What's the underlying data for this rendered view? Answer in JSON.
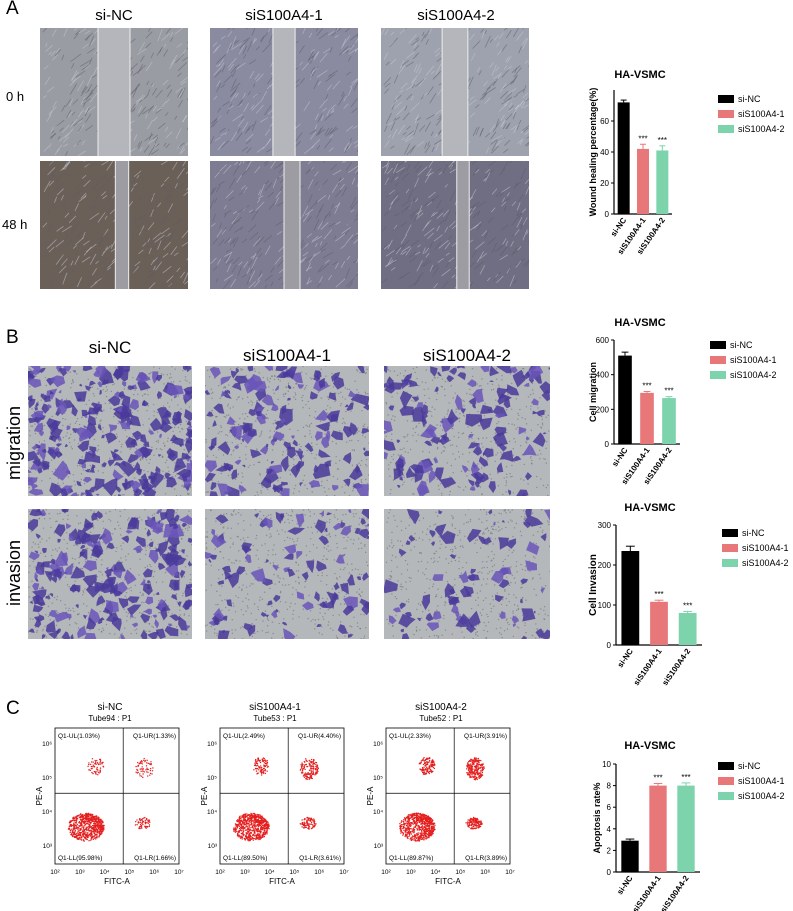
{
  "figure": {
    "panel_a": {
      "letter": "A",
      "columns": [
        "si-NC",
        "siS100A4-1",
        "siS100A4-2"
      ],
      "rows": [
        "0 h",
        "48 h"
      ],
      "gap_widths": [
        0.36,
        0.25,
        0.29,
        0.15,
        0.18,
        0.14
      ]
    },
    "panel_b": {
      "letter": "B",
      "columns": [
        "si-NC",
        "siS100A4-1",
        "siS100A4-2"
      ],
      "rows": [
        "migration",
        "invasion"
      ],
      "stain_density": [
        0.95,
        0.55,
        0.5,
        0.75,
        0.35,
        0.28
      ]
    },
    "panel_c": {
      "letter": "C",
      "columns": [
        "si-NC",
        "siS100A4-1",
        "siS100A4-2"
      ],
      "tubes": [
        "Tube94 : P1",
        "Tube53 : P1",
        "Tube52 : P1"
      ],
      "quadrants": [
        {
          "ul": "Q1-UL(1.03%)",
          "ur": "Q1-UR(1.33%)",
          "ll": "Q1-LL(95.98%)",
          "lr": "Q1-LR(1.66%)"
        },
        {
          "ul": "Q1-UL(2.49%)",
          "ur": "Q1-UR(4.40%)",
          "ll": "Q1-LL(89.50%)",
          "lr": "Q1-LR(3.61%)"
        },
        {
          "ul": "Q1-UL(2.33%)",
          "ur": "Q1-UR(3.91%)",
          "ll": "Q1-LL(89.87%)",
          "lr": "Q1-LR(3.89%)"
        }
      ],
      "axis_x": "FITC-A",
      "axis_y": "PE-A",
      "ticks": [
        "10²",
        "10³",
        "10⁴",
        "10⁵",
        "10⁶",
        "10⁷"
      ],
      "yticks": [
        "10³",
        "10⁴",
        "10⁵",
        "10⁶"
      ]
    },
    "legend": [
      "si-NC",
      "siS100A4-1",
      "siS100A4-2"
    ],
    "significance": "***"
  },
  "chart_data": [
    {
      "type": "bar",
      "title": "HA-VSMC",
      "ylabel": "Wound healing percentage(%)",
      "categories": [
        "si-NC",
        "siS100A4-1",
        "siS100A4-2"
      ],
      "values": [
        72,
        42,
        41
      ],
      "errors": [
        1.5,
        3,
        3
      ],
      "colors": [
        "#000000",
        "#e8777a",
        "#7dd3ab"
      ],
      "ylim": [
        0,
        80
      ],
      "yticks": [
        0,
        20,
        40,
        60
      ],
      "annotations": [
        "",
        "***",
        "***"
      ]
    },
    {
      "type": "bar",
      "title": "HA-VSMC",
      "ylabel": "Cell migration",
      "categories": [
        "si-NC",
        "siS100A4-1",
        "siS100A4-2"
      ],
      "values": [
        510,
        295,
        265
      ],
      "errors": [
        20,
        8,
        8
      ],
      "colors": [
        "#000000",
        "#e8777a",
        "#7dd3ab"
      ],
      "ylim": [
        0,
        600
      ],
      "yticks": [
        0,
        200,
        400,
        600
      ],
      "annotations": [
        "",
        "***",
        "***"
      ]
    },
    {
      "type": "bar",
      "title": "HA-VSMC",
      "ylabel": "Cell Invasion",
      "categories": [
        "si-NC",
        "siS100A4-1",
        "siS100A4-2"
      ],
      "values": [
        235,
        108,
        80
      ],
      "errors": [
        12,
        4,
        4
      ],
      "colors": [
        "#000000",
        "#e8777a",
        "#7dd3ab"
      ],
      "ylim": [
        0,
        300
      ],
      "yticks": [
        0,
        100,
        200,
        300
      ],
      "annotations": [
        "",
        "***",
        "***"
      ]
    },
    {
      "type": "bar",
      "title": "HA-VSMC",
      "ylabel": "Apoptosis rate%",
      "categories": [
        "si-NC",
        "siS100A4-1",
        "siS100A4-2"
      ],
      "values": [
        2.9,
        8.0,
        8.0
      ],
      "errors": [
        0.15,
        0.2,
        0.25
      ],
      "colors": [
        "#000000",
        "#e8777a",
        "#7dd3ab"
      ],
      "ylim": [
        0,
        10
      ],
      "yticks": [
        0,
        2,
        4,
        6,
        8,
        10
      ],
      "annotations": [
        "",
        "***",
        "***"
      ]
    }
  ]
}
